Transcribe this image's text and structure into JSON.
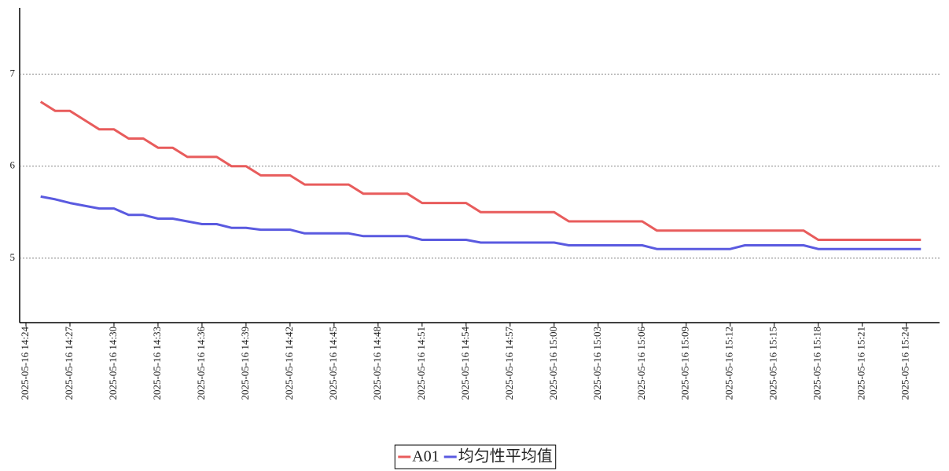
{
  "chart_data": {
    "type": "line",
    "x": [
      "2025-05-16 14:25",
      "2025-05-16 14:26",
      "2025-05-16 14:27",
      "2025-05-16 14:28",
      "2025-05-16 14:29",
      "2025-05-16 14:30",
      "2025-05-16 14:31",
      "2025-05-16 14:32",
      "2025-05-16 14:33",
      "2025-05-16 14:34",
      "2025-05-16 14:35",
      "2025-05-16 14:36",
      "2025-05-16 14:37",
      "2025-05-16 14:38",
      "2025-05-16 14:39",
      "2025-05-16 14:40",
      "2025-05-16 14:41",
      "2025-05-16 14:42",
      "2025-05-16 14:43",
      "2025-05-16 14:44",
      "2025-05-16 14:45",
      "2025-05-16 14:46",
      "2025-05-16 14:47",
      "2025-05-16 14:48",
      "2025-05-16 14:49",
      "2025-05-16 14:50",
      "2025-05-16 14:51",
      "2025-05-16 14:52",
      "2025-05-16 14:53",
      "2025-05-16 14:54",
      "2025-05-16 14:55",
      "2025-05-16 14:56",
      "2025-05-16 14:57",
      "2025-05-16 14:58",
      "2025-05-16 14:59",
      "2025-05-16 15:00",
      "2025-05-16 15:01",
      "2025-05-16 15:02",
      "2025-05-16 15:03",
      "2025-05-16 15:04",
      "2025-05-16 15:05",
      "2025-05-16 15:06",
      "2025-05-16 15:07",
      "2025-05-16 15:08",
      "2025-05-16 15:09",
      "2025-05-16 15:10",
      "2025-05-16 15:11",
      "2025-05-16 15:12",
      "2025-05-16 15:13",
      "2025-05-16 15:14",
      "2025-05-16 15:15",
      "2025-05-16 15:16",
      "2025-05-16 15:17",
      "2025-05-16 15:18",
      "2025-05-16 15:19",
      "2025-05-16 15:20",
      "2025-05-16 15:21",
      "2025-05-16 15:22",
      "2025-05-16 15:23",
      "2025-05-16 15:24",
      "2025-05-16 15:25"
    ],
    "series": [
      {
        "name": "A01",
        "color": "#e85c5c",
        "values": [
          6.7,
          6.6,
          6.6,
          6.5,
          6.4,
          6.4,
          6.3,
          6.3,
          6.2,
          6.2,
          6.1,
          6.1,
          6.1,
          6.0,
          6.0,
          5.9,
          5.9,
          5.9,
          5.8,
          5.8,
          5.8,
          5.8,
          5.7,
          5.7,
          5.7,
          5.7,
          5.6,
          5.6,
          5.6,
          5.6,
          5.5,
          5.5,
          5.5,
          5.5,
          5.5,
          5.5,
          5.4,
          5.4,
          5.4,
          5.4,
          5.4,
          5.4,
          5.3,
          5.3,
          5.3,
          5.3,
          5.3,
          5.3,
          5.3,
          5.3,
          5.3,
          5.3,
          5.3,
          5.2,
          5.2,
          5.2,
          5.2,
          5.2,
          5.2,
          5.2,
          5.2
        ]
      },
      {
        "name": "均匀性平均值",
        "color": "#5a5ae0",
        "values": [
          5.67,
          5.64,
          5.6,
          5.57,
          5.54,
          5.54,
          5.47,
          5.47,
          5.43,
          5.43,
          5.4,
          5.37,
          5.37,
          5.33,
          5.33,
          5.31,
          5.31,
          5.31,
          5.27,
          5.27,
          5.27,
          5.27,
          5.24,
          5.24,
          5.24,
          5.24,
          5.2,
          5.2,
          5.2,
          5.2,
          5.17,
          5.17,
          5.17,
          5.17,
          5.17,
          5.17,
          5.14,
          5.14,
          5.14,
          5.14,
          5.14,
          5.14,
          5.1,
          5.1,
          5.1,
          5.1,
          5.1,
          5.1,
          5.14,
          5.14,
          5.14,
          5.14,
          5.14,
          5.1,
          5.1,
          5.1,
          5.1,
          5.1,
          5.1,
          5.1,
          5.1
        ]
      }
    ],
    "xlim": [
      "2025-05-16 14:24",
      "2025-05-16 15:26"
    ],
    "xticks": [
      "2025-05-16 14:24",
      "2025-05-16 14:27",
      "2025-05-16 14:30",
      "2025-05-16 14:33",
      "2025-05-16 14:36",
      "2025-05-16 14:39",
      "2025-05-16 14:42",
      "2025-05-16 14:45",
      "2025-05-16 14:48",
      "2025-05-16 14:51",
      "2025-05-16 14:54",
      "2025-05-16 14:57",
      "2025-05-16 15:00",
      "2025-05-16 15:03",
      "2025-05-16 15:06",
      "2025-05-16 15:09",
      "2025-05-16 15:12",
      "2025-05-16 15:15",
      "2025-05-16 15:18",
      "2025-05-16 15:21",
      "2025-05-16 15:24"
    ],
    "ylim": [
      4.3,
      7.72
    ],
    "yticks": [
      5,
      6,
      7
    ],
    "grid": true,
    "legend": "bottom"
  }
}
